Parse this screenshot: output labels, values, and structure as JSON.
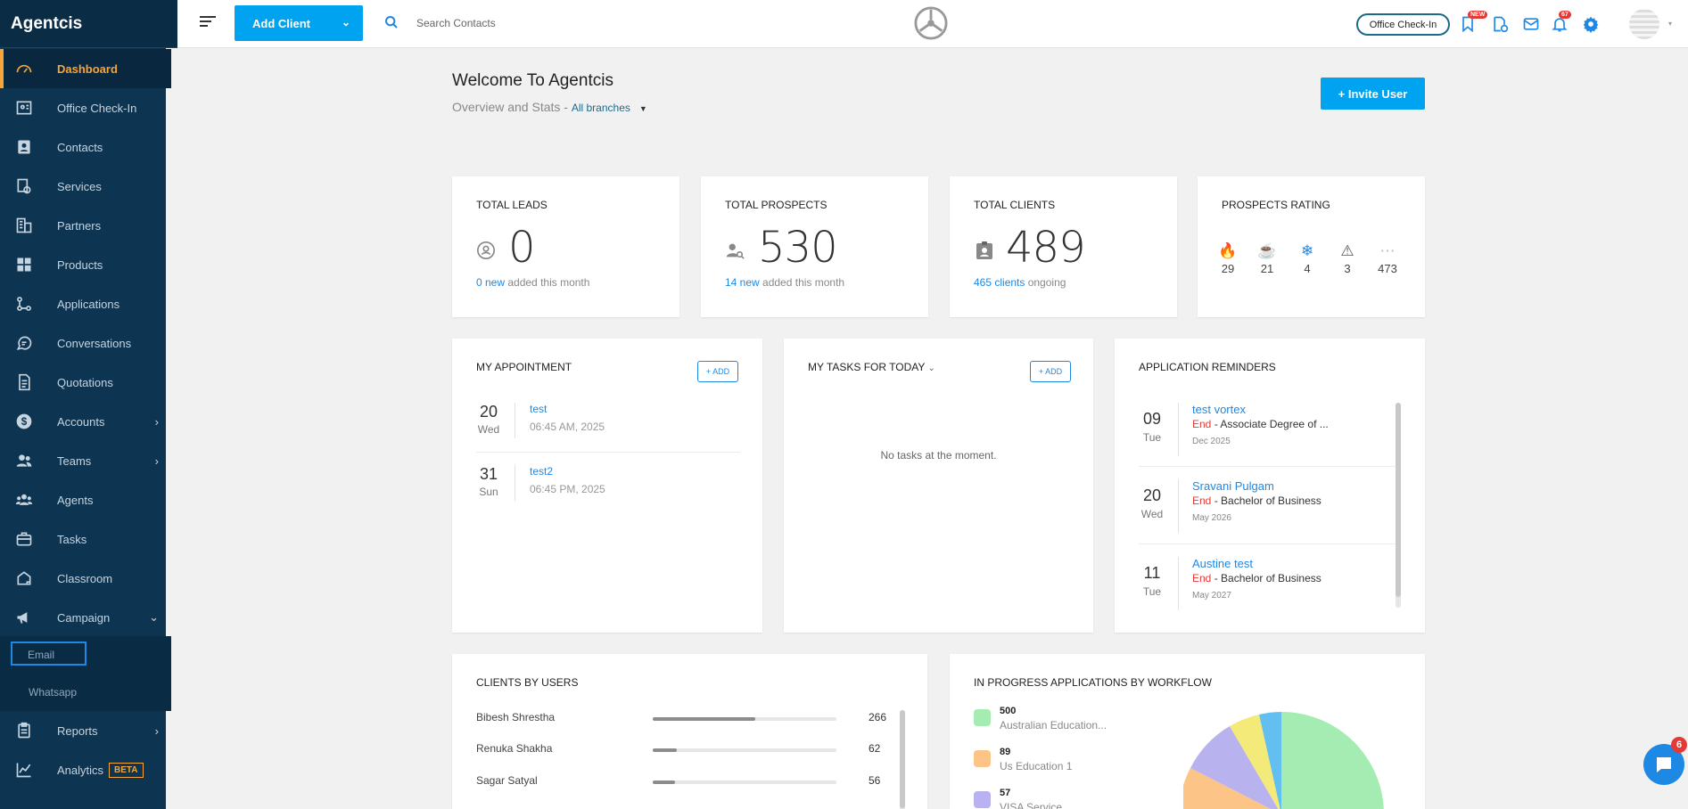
{
  "sidebar": {
    "brand": "Agentcis",
    "items": [
      {
        "label": "Dashboard",
        "icon": "dashboard-icon"
      },
      {
        "label": "Office Check-In",
        "icon": "office-checkin-icon"
      },
      {
        "label": "Contacts",
        "icon": "contacts-icon"
      },
      {
        "label": "Services",
        "icon": "services-icon"
      },
      {
        "label": "Partners",
        "icon": "partners-icon"
      },
      {
        "label": "Products",
        "icon": "products-icon"
      },
      {
        "label": "Applications",
        "icon": "applications-icon"
      },
      {
        "label": "Conversations",
        "icon": "conversations-icon"
      },
      {
        "label": "Quotations",
        "icon": "quotations-icon"
      },
      {
        "label": "Accounts",
        "icon": "accounts-icon"
      },
      {
        "label": "Teams",
        "icon": "teams-icon"
      },
      {
        "label": "Agents",
        "icon": "agents-icon"
      },
      {
        "label": "Tasks",
        "icon": "tasks-icon"
      },
      {
        "label": "Classroom",
        "icon": "classroom-icon"
      },
      {
        "label": "Campaign",
        "icon": "campaign-icon"
      },
      {
        "label": "Reports",
        "icon": "reports-icon"
      },
      {
        "label": "Analytics",
        "icon": "analytics-icon"
      }
    ],
    "campaign_sub": [
      "Email",
      "Whatsapp"
    ],
    "beta_label": "BETA"
  },
  "topbar": {
    "add_client": "Add Client",
    "search_placeholder": "Search Contacts",
    "office_checkin": "Office Check-In",
    "new_badge": "NEW",
    "notif_count": "67"
  },
  "header": {
    "welcome": "Welcome To Agentcis",
    "overview": "Overview and Stats - ",
    "branch": "All branches",
    "invite": "+  Invite User"
  },
  "stats": {
    "leads": {
      "title": "TOTAL LEADS",
      "value": "0",
      "link": "0 new",
      "suffix": " added this month"
    },
    "prospects": {
      "title": "TOTAL PROSPECTS",
      "value": "530",
      "link": "14 new",
      "suffix": " added this month"
    },
    "clients": {
      "title": "TOTAL CLIENTS",
      "value": "489",
      "link": "465 clients",
      "suffix": " ongoing"
    },
    "rating": {
      "title": "PROSPECTS RATING",
      "items": [
        {
          "icon": "fire-icon",
          "glyph": "🔥",
          "value": "29",
          "color": "#e53935"
        },
        {
          "icon": "coffee-icon",
          "glyph": "☕",
          "value": "21",
          "color": "#f5a53a"
        },
        {
          "icon": "snowflake-icon",
          "glyph": "❄",
          "value": "4",
          "color": "#1e88e5"
        },
        {
          "icon": "warning-icon",
          "glyph": "⚠",
          "value": "3",
          "color": "#555555"
        },
        {
          "icon": "unrated-icon",
          "glyph": "⋯",
          "value": "473",
          "color": "#bbbbbb"
        }
      ]
    }
  },
  "appointments": {
    "title": "MY APPOINTMENT",
    "add": "+ ADD",
    "items": [
      {
        "day": "20",
        "weekday": "Wed",
        "title": "test",
        "time": "06:45 AM, 2025"
      },
      {
        "day": "31",
        "weekday": "Sun",
        "title": "test2",
        "time": "06:45 PM, 2025"
      }
    ]
  },
  "tasks": {
    "title": "MY TASKS FOR  TODAY",
    "add": "+ ADD",
    "empty": "No tasks at the moment."
  },
  "reminders": {
    "title": "APPLICATION REMINDERS",
    "items": [
      {
        "day": "09",
        "weekday": "Tue",
        "name": "test vortex",
        "end": "End",
        "desc": " - Associate Degree of ...",
        "month": "Dec 2025"
      },
      {
        "day": "20",
        "weekday": "Wed",
        "name": "Sravani Pulgam",
        "end": "End",
        "desc": " - Bachelor of Business",
        "month": "May 2026"
      },
      {
        "day": "11",
        "weekday": "Tue",
        "name": "Austine test",
        "end": "End",
        "desc": " - Bachelor of Business",
        "month": "May 2027"
      }
    ]
  },
  "clients_by_users": {
    "title": "CLIENTS BY USERS",
    "rows": [
      {
        "name": "Bibesh Shrestha",
        "value": "266",
        "fraction": 0.56
      },
      {
        "name": "Renuka Shakha",
        "value": "62",
        "fraction": 0.13
      },
      {
        "name": "Sagar Satyal",
        "value": "56",
        "fraction": 0.12
      }
    ]
  },
  "workflow": {
    "title": "IN PROGRESS APPLICATIONS BY WORKFLOW",
    "legend": [
      {
        "value": "500",
        "label": "Australian Education...",
        "color": "#a4ecb2"
      },
      {
        "value": "89",
        "label": "Us Education 1",
        "color": "#fcc487"
      },
      {
        "value": "57",
        "label": "VISA Service",
        "color": "#b8b3ef"
      }
    ]
  },
  "chat": {
    "badge": "6"
  }
}
